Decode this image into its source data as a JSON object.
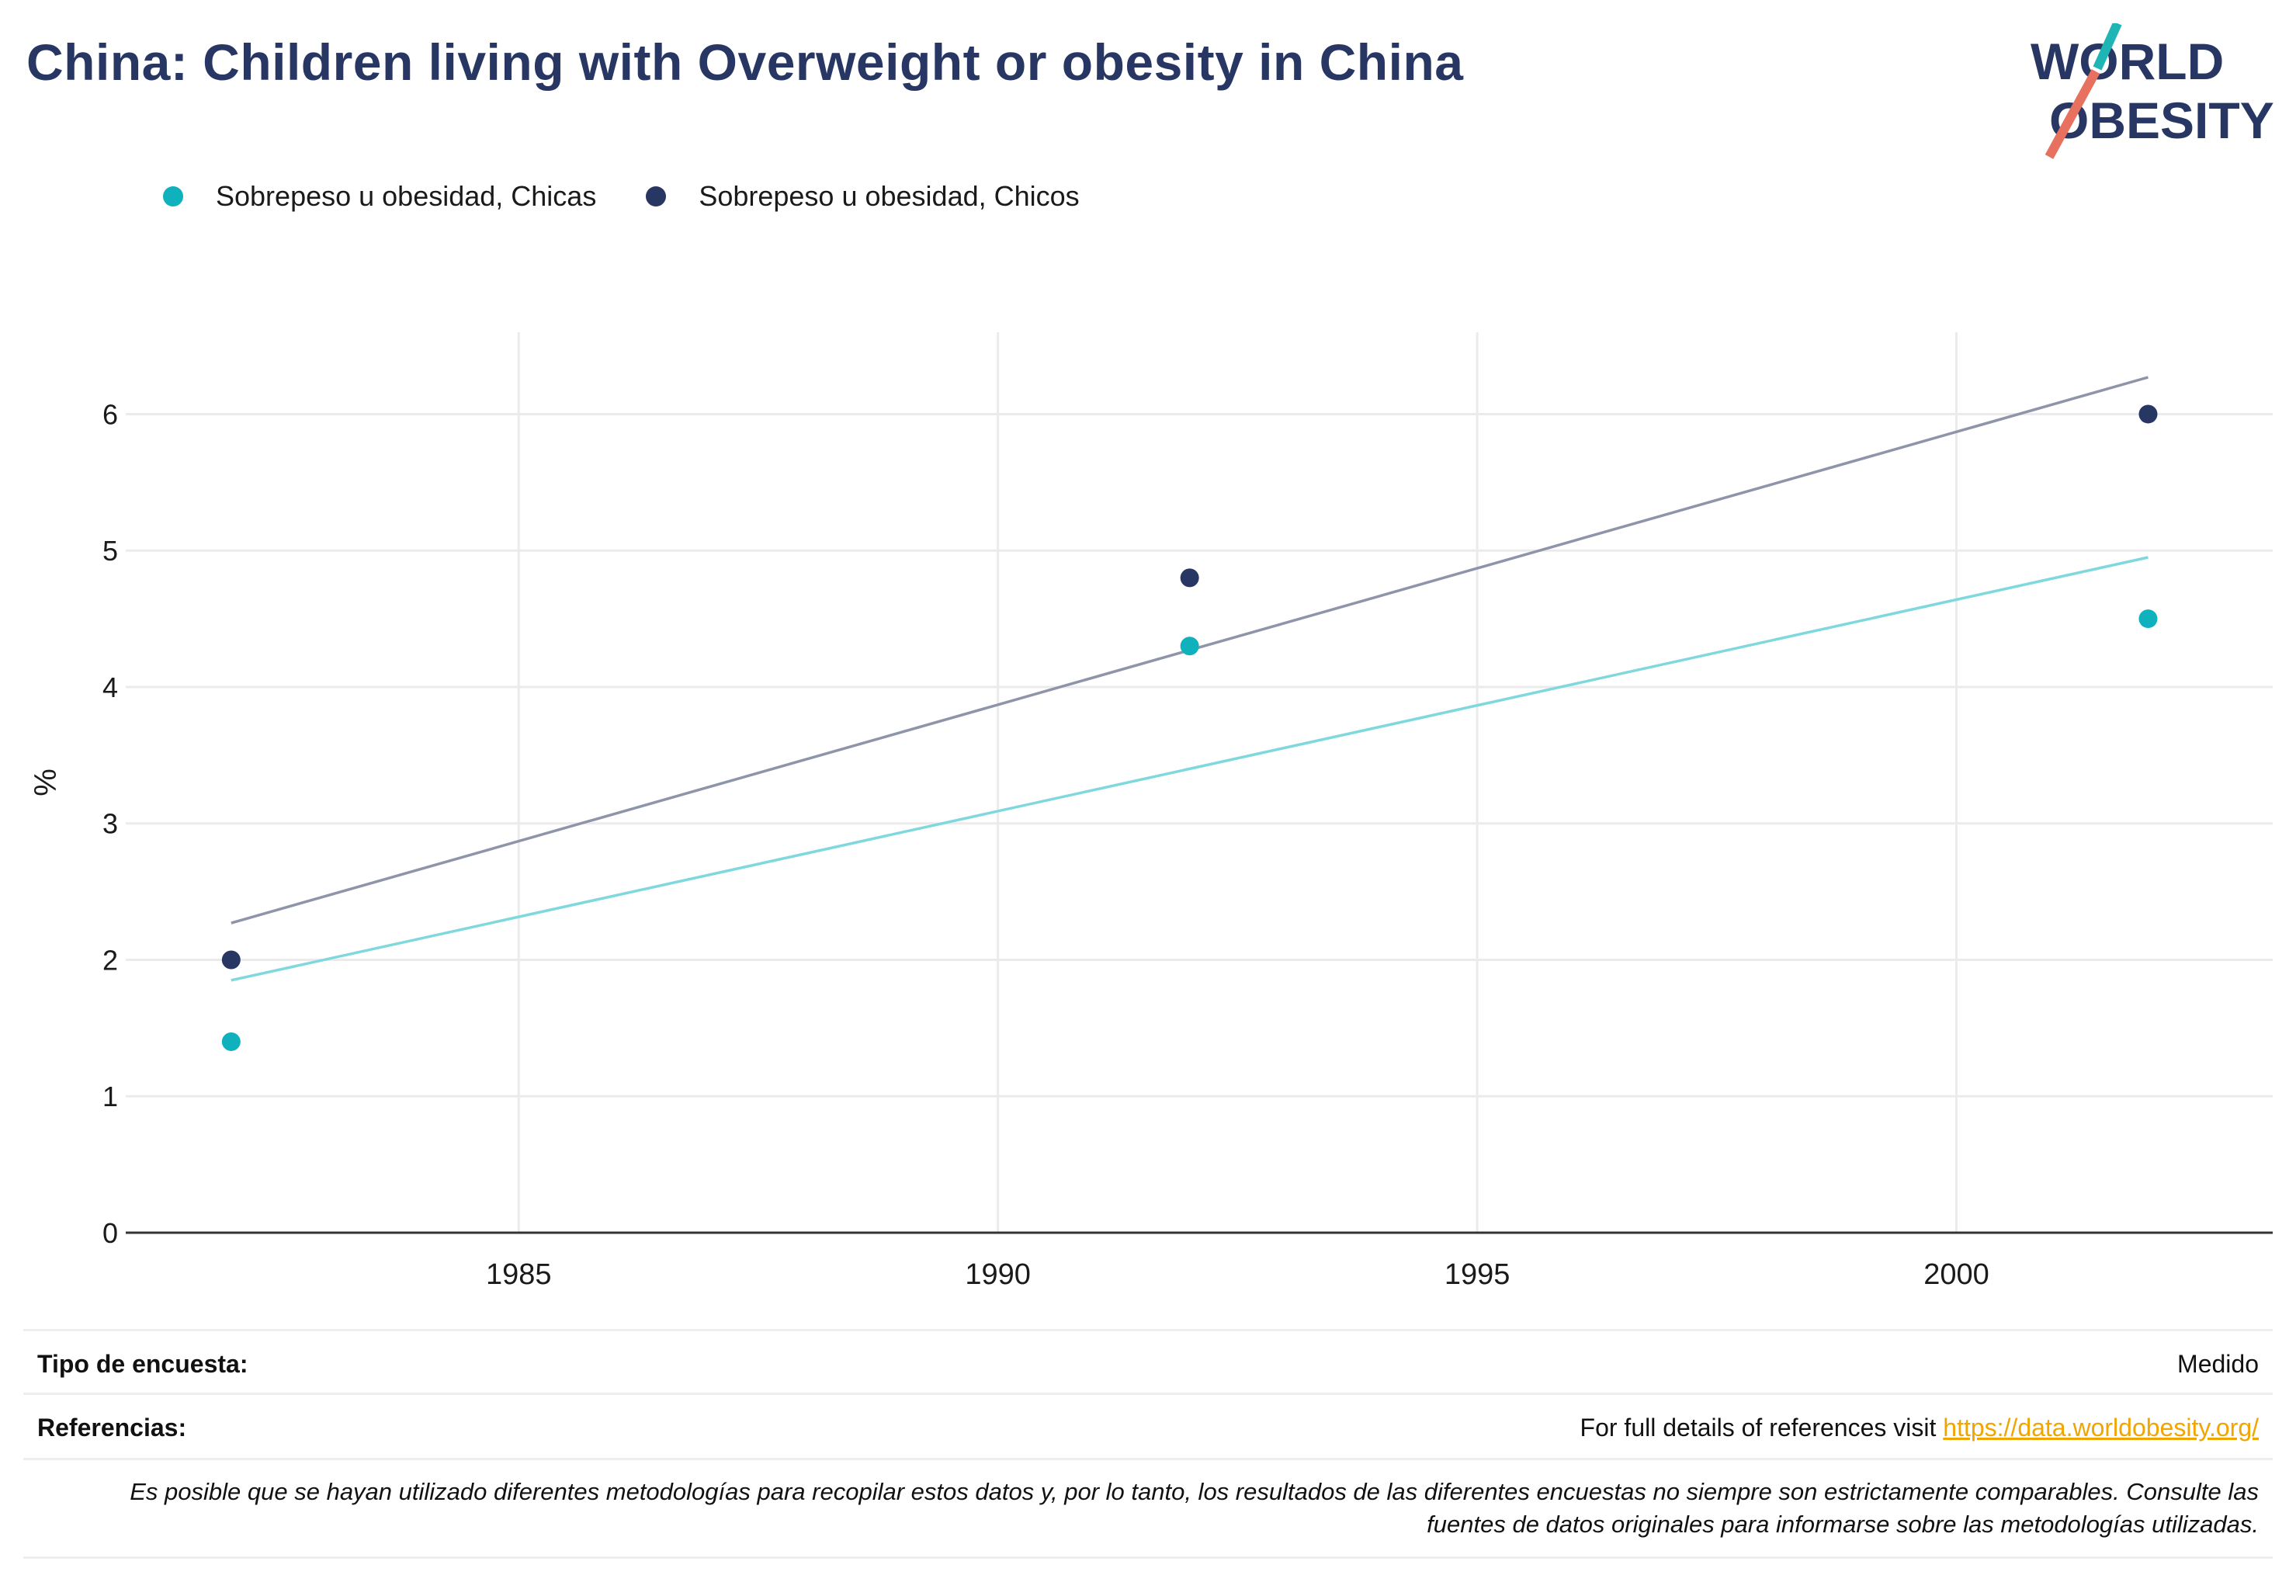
{
  "title": "China: Children living with Overweight or obesity in China",
  "logo": {
    "line1": "WORLD",
    "line2": "OBESITY"
  },
  "legend": [
    {
      "label": "Sobrepeso u obesidad, Chicas",
      "color": "#0fb1bd"
    },
    {
      "label": "Sobrepeso u obesidad, Chicos",
      "color": "#283663"
    }
  ],
  "chart_data": {
    "type": "scatter",
    "ylabel": "%",
    "xlabel": "",
    "xlim": [
      1980.9,
      2003.3
    ],
    "ylim": [
      0,
      6.6
    ],
    "x_ticks": [
      1985,
      1990,
      1995,
      2000
    ],
    "y_ticks": [
      0,
      1,
      2,
      3,
      4,
      5,
      6
    ],
    "grid": true,
    "series": [
      {
        "name": "Sobrepeso u obesidad, Chicas",
        "color": "#0fb1bd",
        "trend_color": "#7fd8de",
        "x": [
          1982,
          1992,
          2002
        ],
        "y": [
          1.4,
          4.3,
          4.5
        ],
        "trend": [
          [
            1982,
            1.85
          ],
          [
            2002,
            4.95
          ]
        ]
      },
      {
        "name": "Sobrepeso u obesidad, Chicos",
        "color": "#283663",
        "trend_color": "#8e95aa",
        "x": [
          1982,
          1992,
          2002
        ],
        "y": [
          2.0,
          4.8,
          6.0
        ],
        "trend": [
          [
            1982,
            2.27
          ],
          [
            2002,
            6.27
          ]
        ]
      }
    ]
  },
  "info": {
    "survey_label": "Tipo de encuesta:",
    "survey_value": "Medido",
    "refs_label": "Referencias:",
    "refs_text": "For full details of references visit ",
    "refs_link": "https://data.worldobesity.org/",
    "note": "Es posible que se hayan utilizado diferentes metodologías para recopilar estos datos y, por lo tanto, los resultados de las diferentes encuestas no siempre son estrictamente comparables. Consulte las fuentes de datos originales para informarse sobre las metodologías utilizadas."
  }
}
